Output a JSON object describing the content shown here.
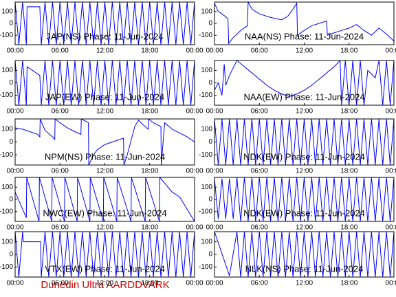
{
  "footer": "Dunedin Ultra AARDDVARK",
  "chart_data": [
    {
      "type": "line",
      "title": "JAP(NS) Phase: 11-Jun-2024",
      "color": "#0000ff",
      "xlim": [
        0,
        24
      ],
      "xticks": [
        {
          "value": 0,
          "label": "00:00"
        },
        {
          "value": 6,
          "label": "06:00"
        },
        {
          "value": 12,
          "label": "12:00"
        },
        {
          "value": 18,
          "label": "18:00"
        },
        {
          "value": 24,
          "label": "00:00"
        }
      ],
      "ylim": [
        -180,
        180
      ],
      "yticks": [
        -100,
        0,
        100
      ],
      "x": [
        0,
        0.5,
        1,
        1.5,
        1.6,
        3.3,
        3.5,
        4,
        4.5,
        5,
        5.5,
        6,
        6.5,
        7,
        7.5,
        8,
        8.5,
        9,
        9.5,
        10,
        10.5,
        11,
        11.5,
        12,
        12.5,
        13,
        13.5,
        14,
        14.5,
        15,
        15.5,
        16,
        16.5,
        17,
        17.5,
        18,
        18.5,
        19,
        19.5,
        20,
        20.5,
        21,
        21.5,
        22,
        22.5,
        23,
        23.5,
        24
      ],
      "values": [
        180,
        -180,
        180,
        -180,
        140,
        140,
        -180,
        180,
        -180,
        180,
        -180,
        180,
        -180,
        180,
        -180,
        180,
        -180,
        180,
        -180,
        180,
        -180,
        180,
        -180,
        180,
        -180,
        180,
        -180,
        180,
        -180,
        180,
        -180,
        180,
        -180,
        180,
        -180,
        180,
        -180,
        180,
        -180,
        180,
        -180,
        180,
        -180,
        180,
        -180,
        180,
        -180,
        180
      ]
    },
    {
      "type": "line",
      "title": "JAP(EW) Phase: 11-Jun-2024",
      "color": "#0000ff",
      "xlim": [
        0,
        24
      ],
      "xticks": [
        {
          "value": 0,
          "label": "00:00"
        },
        {
          "value": 6,
          "label": "06:00"
        },
        {
          "value": 12,
          "label": "12:00"
        },
        {
          "value": 18,
          "label": "18:00"
        },
        {
          "value": 24,
          "label": "00:00"
        }
      ],
      "ylim": [
        -180,
        180
      ],
      "yticks": [
        -100,
        0,
        100
      ],
      "x": [
        0,
        0.5,
        1,
        1.5,
        1.6,
        3.3,
        3.5,
        4,
        4.5,
        5,
        5.5,
        6,
        6.5,
        7,
        7.5,
        8,
        8.5,
        9,
        9.5,
        10,
        10.5,
        11,
        11.5,
        12,
        12.5,
        13,
        13.5,
        14,
        14.5,
        15,
        15.5,
        16,
        16.5,
        17,
        17.5,
        18,
        18.5,
        19,
        19.5,
        20,
        20.5,
        21,
        21.5,
        22,
        22.5,
        23,
        23.5,
        24
      ],
      "values": [
        180,
        -180,
        180,
        -180,
        130,
        60,
        -180,
        180,
        -180,
        180,
        -180,
        180,
        -180,
        180,
        -180,
        180,
        -180,
        180,
        -180,
        180,
        -180,
        180,
        -180,
        180,
        -180,
        180,
        -180,
        180,
        -180,
        180,
        -180,
        180,
        -180,
        180,
        -180,
        180,
        -180,
        180,
        -180,
        180,
        -180,
        180,
        -180,
        180,
        -180,
        180,
        -180,
        180
      ]
    },
    {
      "type": "line",
      "title": "NPM(NS) Phase: 11-Jun-2024",
      "color": "#0000ff",
      "xlim": [
        0,
        24
      ],
      "xticks": [
        {
          "value": 0,
          "label": "00:00"
        },
        {
          "value": 6,
          "label": "06:00"
        },
        {
          "value": 12,
          "label": "12:00"
        },
        {
          "value": 18,
          "label": "18:00"
        },
        {
          "value": 24,
          "label": "00:00"
        }
      ],
      "ylim": [
        -180,
        180
      ],
      "yticks": [
        -100,
        0,
        100
      ],
      "x": [
        0,
        1,
        2,
        3,
        3.3,
        3.35,
        4,
        5,
        5.3,
        5.35,
        6,
        7,
        8,
        8.8,
        8.85,
        9.5,
        9.8,
        9.85,
        10.5,
        11,
        12,
        13,
        14,
        14.5,
        14.55,
        15,
        16,
        16.5,
        17,
        17.8,
        17.85,
        18.5,
        19.5,
        19.55,
        20,
        21,
        22,
        23,
        24
      ],
      "values": [
        110,
        100,
        80,
        60,
        40,
        180,
        90,
        40,
        20,
        180,
        150,
        110,
        80,
        60,
        180,
        160,
        150,
        -180,
        -100,
        -60,
        -20,
        0,
        20,
        30,
        -180,
        -100,
        120,
        170,
        140,
        100,
        180,
        150,
        120,
        -180,
        150,
        100,
        70,
        40,
        0
      ]
    },
    {
      "type": "line",
      "title": "NWC(EW) Phase: 11-Jun-2024",
      "color": "#0000ff",
      "xlim": [
        0,
        24
      ],
      "xticks": [
        {
          "value": 0,
          "label": "00:00"
        },
        {
          "value": 6,
          "label": "06:00"
        },
        {
          "value": 12,
          "label": "12:00"
        },
        {
          "value": 18,
          "label": "18:00"
        },
        {
          "value": 24,
          "label": "00:00"
        }
      ],
      "ylim": [
        -180,
        180
      ],
      "yticks": [
        -100,
        0,
        100
      ],
      "x": [
        0,
        1.5,
        1.55,
        3.2,
        3.25,
        4.9,
        4.95,
        6.6,
        6.65,
        8.3,
        8.35,
        10,
        10.05,
        11.8,
        11.85,
        13.6,
        13.65,
        15.5,
        15.55,
        17.4,
        17.45,
        19.3,
        19.35,
        21,
        22,
        23,
        24
      ],
      "values": [
        60,
        -150,
        180,
        -180,
        180,
        -180,
        180,
        -180,
        180,
        -180,
        180,
        -180,
        180,
        -180,
        180,
        -180,
        180,
        -180,
        180,
        -180,
        180,
        -180,
        180,
        60,
        20,
        -80,
        -180
      ]
    },
    {
      "type": "line",
      "title": "VTX(EW) Phase: 11-Jun-2024",
      "color": "#0000ff",
      "xlim": [
        0,
        24
      ],
      "xticks": [
        {
          "value": 0,
          "label": "00:00"
        },
        {
          "value": 6,
          "label": "06:00"
        },
        {
          "value": 12,
          "label": "12:00"
        },
        {
          "value": 18,
          "label": "18:00"
        },
        {
          "value": 24,
          "label": "00:00"
        }
      ],
      "ylim": [
        -180,
        180
      ],
      "yticks": [
        -100,
        0,
        100
      ],
      "x": [
        0,
        0.5,
        1,
        1.1,
        3.4,
        3.5,
        4,
        4.5,
        5,
        5.5,
        6,
        6.5,
        7,
        7.5,
        8,
        8.5,
        9,
        9.5,
        10,
        10.5,
        11,
        11.5,
        12,
        12.5,
        13,
        13.5,
        14,
        14.5,
        15,
        15.5,
        16,
        16.5,
        17,
        17.5,
        18,
        18.5,
        19,
        19.5,
        20,
        20.5,
        21,
        21.5,
        22,
        22.5,
        23,
        23.5,
        24
      ],
      "values": [
        180,
        -180,
        180,
        100,
        100,
        -180,
        180,
        -180,
        180,
        -180,
        180,
        -180,
        180,
        -180,
        180,
        -180,
        180,
        -180,
        180,
        -180,
        180,
        -180,
        180,
        -180,
        180,
        -180,
        180,
        -180,
        180,
        -180,
        180,
        -180,
        180,
        -180,
        180,
        -180,
        180,
        -180,
        180,
        -180,
        180,
        -180,
        180,
        -180,
        180,
        -180,
        180
      ]
    },
    {
      "type": "line",
      "title": "NAA(NS) Phase: 11-Jun-2024",
      "color": "#0000ff",
      "xlim": [
        0,
        24
      ],
      "xticks": [
        {
          "value": 0,
          "label": "00:00"
        },
        {
          "value": 6,
          "label": "06:00"
        },
        {
          "value": 12,
          "label": "12:00"
        },
        {
          "value": 18,
          "label": "18:00"
        },
        {
          "value": 24,
          "label": "00:00"
        }
      ],
      "ylim": [
        -180,
        180
      ],
      "yticks": [
        -100,
        0,
        100
      ],
      "x": [
        0,
        0.5,
        1,
        1.8,
        1.9,
        2.5,
        3.5,
        4.4,
        4.5,
        5,
        6,
        7.5,
        9,
        9.8,
        10.5,
        11,
        11.1,
        12,
        13,
        14,
        15,
        15.1,
        16,
        17,
        18,
        19,
        20,
        21,
        22,
        23,
        24
      ],
      "values": [
        170,
        100,
        80,
        40,
        -170,
        -120,
        -60,
        -20,
        180,
        120,
        80,
        50,
        30,
        60,
        120,
        170,
        -100,
        -60,
        -20,
        0,
        20,
        -100,
        -80,
        -60,
        -40,
        -10,
        -60,
        -100,
        -40,
        -90,
        -150
      ]
    },
    {
      "type": "line",
      "title": "NAA(EW) Phase: 11-Jun-2024",
      "color": "#0000ff",
      "xlim": [
        0,
        24
      ],
      "xticks": [
        {
          "value": 0,
          "label": "00:00"
        },
        {
          "value": 6,
          "label": "06:00"
        },
        {
          "value": 12,
          "label": "12:00"
        },
        {
          "value": 18,
          "label": "18:00"
        },
        {
          "value": 24,
          "label": "00:00"
        }
      ],
      "ylim": [
        -180,
        180
      ],
      "yticks": [
        -100,
        0,
        100
      ],
      "x": [
        0,
        0.5,
        1,
        1.3,
        1.5,
        2,
        3,
        4,
        5,
        6,
        7,
        8,
        9,
        10,
        11,
        12,
        13,
        14,
        15,
        16,
        16.8,
        17,
        17.5,
        18,
        18.5,
        19,
        19.5,
        20,
        20.5,
        21.5,
        22,
        22.5,
        23,
        23.5,
        24
      ],
      "values": [
        -60,
        0,
        -100,
        150,
        -20,
        60,
        180,
        130,
        80,
        30,
        -20,
        -60,
        -90,
        -110,
        -90,
        -60,
        -20,
        30,
        80,
        130,
        180,
        -180,
        180,
        -180,
        180,
        -180,
        180,
        -180,
        100,
        40,
        180,
        -180,
        180,
        -180,
        180
      ]
    },
    {
      "type": "line",
      "title": "NDK(EW) Phase: 11-Jun-2024",
      "color": "#0000ff",
      "xlim": [
        0,
        24
      ],
      "xticks": [
        {
          "value": 0,
          "label": "00:00"
        },
        {
          "value": 6,
          "label": "06:00"
        },
        {
          "value": 12,
          "label": "12:00"
        },
        {
          "value": 18,
          "label": "18:00"
        },
        {
          "value": 24,
          "label": "00:00"
        }
      ],
      "ylim": [
        -180,
        180
      ],
      "yticks": [
        -100,
        0,
        100
      ],
      "x": [
        0,
        0.5,
        1,
        1.5,
        2,
        2.5,
        3,
        3.5,
        4,
        4.5,
        5,
        5.5,
        6,
        6.5,
        7,
        7.5,
        8,
        8.5,
        9,
        9.5,
        10,
        10.5,
        11,
        11.5,
        12,
        12.5,
        13,
        13.5,
        14,
        14.5,
        15,
        15.5,
        16,
        16.5,
        17,
        17.5,
        18,
        18.5,
        19,
        19.5,
        20,
        20.5,
        21,
        21.5,
        22,
        22.5,
        23,
        23.5,
        24
      ],
      "values": [
        180,
        -180,
        180,
        -180,
        180,
        -180,
        180,
        -180,
        180,
        -180,
        180,
        -180,
        180,
        -180,
        180,
        -180,
        180,
        -180,
        180,
        -180,
        180,
        -180,
        180,
        -180,
        180,
        -180,
        180,
        -180,
        180,
        -180,
        180,
        -180,
        180,
        -180,
        180,
        -180,
        180,
        -180,
        180,
        -180,
        180,
        -180,
        180,
        -180,
        180,
        -180,
        180,
        -180,
        180
      ]
    },
    {
      "type": "line",
      "title": "NDK(EW) Phase: 11-Jun-2024",
      "color": "#0000ff",
      "xlim": [
        0,
        24
      ],
      "xticks": [
        {
          "value": 0,
          "label": "00:00"
        },
        {
          "value": 6,
          "label": "06:00"
        },
        {
          "value": 12,
          "label": "12:00"
        },
        {
          "value": 18,
          "label": "18:00"
        },
        {
          "value": 24,
          "label": "00:00"
        }
      ],
      "ylim": [
        -180,
        180
      ],
      "yticks": [
        -100,
        0,
        100
      ],
      "x": [
        0,
        0.5,
        1,
        1.5,
        2,
        2.5,
        3,
        3.5,
        4,
        4.5,
        5,
        5.5,
        6,
        6.5,
        7,
        7.5,
        8,
        8.5,
        9,
        9.5,
        10,
        10.5,
        11,
        11.5,
        12,
        12.5,
        13,
        13.5,
        14,
        14.5,
        15,
        15.5,
        16,
        16.5,
        17,
        17.5,
        18,
        18.5,
        19,
        19.5,
        20,
        20.5,
        21,
        21.5,
        22,
        22.5,
        23,
        23.5,
        24
      ],
      "values": [
        170,
        -160,
        170,
        -160,
        170,
        -160,
        180,
        -180,
        180,
        -180,
        180,
        -180,
        180,
        -180,
        180,
        -180,
        180,
        -180,
        180,
        -180,
        180,
        -180,
        180,
        -180,
        180,
        -180,
        180,
        -180,
        180,
        -180,
        180,
        -180,
        180,
        -180,
        180,
        -180,
        180,
        -180,
        180,
        -180,
        180,
        -180,
        180,
        -180,
        180,
        -180,
        180,
        -180,
        180
      ]
    },
    {
      "type": "line",
      "title": "NLK(NS) Phase: 11-Jun-2024",
      "color": "#0000ff",
      "xlim": [
        0,
        24
      ],
      "xticks": [
        {
          "value": 0,
          "label": "00:00"
        },
        {
          "value": 6,
          "label": "06:00"
        },
        {
          "value": 12,
          "label": "12:00"
        },
        {
          "value": 18,
          "label": "18:00"
        },
        {
          "value": 24,
          "label": "00:00"
        }
      ],
      "ylim": [
        -180,
        180
      ],
      "yticks": [
        -100,
        0,
        100
      ],
      "x": [
        0,
        2,
        3,
        3.5,
        4,
        4.5,
        5,
        5.5,
        6,
        6.5,
        7,
        7.5,
        8,
        8.5,
        9,
        9.5,
        10,
        10.5,
        11,
        11.5,
        12,
        12.5,
        13,
        13.5,
        14,
        14.5,
        15,
        15.5,
        16,
        16.5,
        17,
        17.5,
        18,
        18.5,
        19,
        19.5,
        20,
        20.5,
        21,
        21.5,
        22,
        22.5,
        23,
        23.5,
        24
      ],
      "values": [
        180,
        -170,
        180,
        -180,
        180,
        -180,
        180,
        -180,
        180,
        -180,
        180,
        -180,
        180,
        -180,
        180,
        -180,
        180,
        -180,
        180,
        -180,
        180,
        -180,
        180,
        -180,
        180,
        -180,
        180,
        -180,
        180,
        -180,
        180,
        -180,
        180,
        -180,
        180,
        -180,
        180,
        -180,
        180,
        -180,
        180,
        -180,
        180,
        -180,
        180
      ]
    }
  ]
}
